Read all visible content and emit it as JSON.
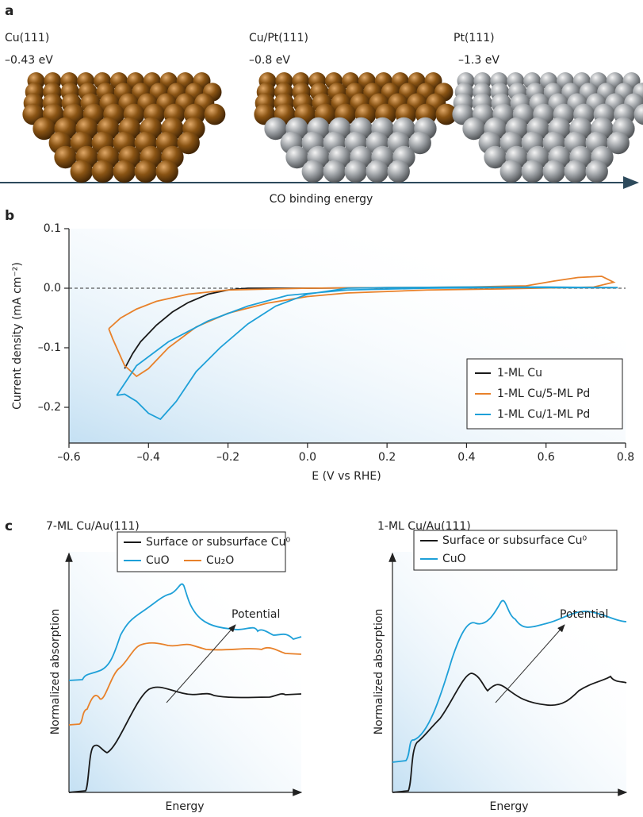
{
  "panel_a": {
    "label": "a",
    "surfaces": [
      {
        "name": "Cu(111)",
        "energy": "–0.43 eV"
      },
      {
        "name": "Cu/Pt(111)",
        "energy": "–0.8 eV"
      },
      {
        "name": "Pt(111)",
        "energy": "–1.3 eV"
      }
    ],
    "axis_label": "CO binding energy"
  },
  "chart_data": {
    "type": "line",
    "panel_label": "b",
    "x_label": "E (V vs RHE)",
    "y_label": "Current density (mA cm⁻²)",
    "xlim": [
      -0.6,
      0.8
    ],
    "ylim": [
      -0.26,
      0.1
    ],
    "xticks": [
      {
        "value": -0.6,
        "label": "–0.6"
      },
      {
        "value": -0.4,
        "label": "–0.4"
      },
      {
        "value": -0.2,
        "label": "–0.2"
      },
      {
        "value": 0,
        "label": "0.0"
      },
      0.2,
      0.4,
      0.6,
      0.8
    ],
    "yticks": [
      {
        "value": -0.2,
        "label": "–0.2"
      },
      {
        "value": -0.1,
        "label": "–0.1"
      },
      {
        "value": 0,
        "label": "0.0"
      },
      0.1
    ],
    "reference_line": 0,
    "legend": "lower right",
    "series": [
      {
        "name": "1-ML Cu",
        "color": "#1a1a1a",
        "x": [
          -0.46,
          -0.44,
          -0.42,
          -0.38,
          -0.34,
          -0.3,
          -0.25,
          -0.2,
          -0.15,
          0,
          0.2,
          0.4,
          0.6,
          0.78
        ],
        "values": [
          -0.135,
          -0.11,
          -0.09,
          -0.062,
          -0.04,
          -0.024,
          -0.01,
          -0.003,
          0,
          0,
          0.001,
          0.001,
          0.001,
          0.001
        ]
      },
      {
        "name": "1-ML Cu/5-ML Pd",
        "color": "#e8812a",
        "x": [
          -0.5,
          -0.47,
          -0.43,
          -0.38,
          -0.3,
          -0.2,
          0,
          0.2,
          0.4,
          0.55,
          0.62,
          0.68,
          0.74,
          0.77,
          0.72,
          0.5,
          0.3,
          0.1,
          0,
          -0.1,
          -0.2,
          -0.28,
          -0.35,
          -0.4,
          -0.43,
          -0.46,
          -0.48,
          -0.49,
          -0.5
        ],
        "values": [
          -0.068,
          -0.05,
          -0.035,
          -0.022,
          -0.01,
          -0.003,
          0,
          0.001,
          0.002,
          0.004,
          0.012,
          0.018,
          0.02,
          0.01,
          0.002,
          -0.001,
          -0.003,
          -0.008,
          -0.014,
          -0.025,
          -0.042,
          -0.065,
          -0.1,
          -0.135,
          -0.148,
          -0.13,
          -0.1,
          -0.085,
          -0.068
        ]
      },
      {
        "name": "1-ML Cu/1-ML Pd",
        "color": "#1ea0d8",
        "x": [
          -0.48,
          -0.43,
          -0.35,
          -0.25,
          -0.15,
          -0.05,
          0.1,
          0.3,
          0.5,
          0.78,
          0.6,
          0.4,
          0.2,
          0.1,
          0,
          -0.08,
          -0.15,
          -0.22,
          -0.28,
          -0.33,
          -0.37,
          -0.4,
          -0.43,
          -0.46,
          -0.48
        ],
        "values": [
          -0.18,
          -0.13,
          -0.09,
          -0.055,
          -0.03,
          -0.012,
          -0.003,
          0,
          0.001,
          0.001,
          0.002,
          0.002,
          0.001,
          0,
          -0.01,
          -0.03,
          -0.06,
          -0.1,
          -0.14,
          -0.19,
          -0.22,
          -0.21,
          -0.19,
          -0.178,
          -0.18
        ]
      }
    ]
  },
  "panel_c": {
    "label": "c",
    "plots": [
      {
        "title": "7-ML Cu/Au(111)",
        "legend": [
          "Surface or subsurface Cu⁰",
          "CuO",
          "Cu₂O"
        ],
        "arrow_label": "Potential",
        "y_label": "Normalized absorption",
        "x_label": "Energy"
      },
      {
        "title": "1-ML Cu/Au(111)",
        "legend": [
          "Surface or subsurface Cu⁰",
          "CuO"
        ],
        "arrow_label": "Potential",
        "y_label": "Normalized absorption",
        "x_label": "Energy"
      }
    ]
  }
}
